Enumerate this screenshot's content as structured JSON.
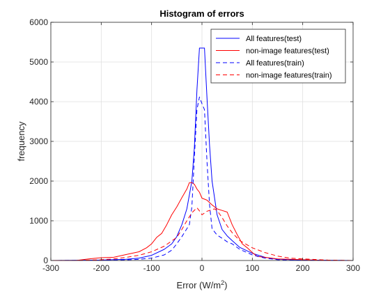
{
  "chart_data": {
    "type": "line",
    "title": "Histogram of errors",
    "xlabel": "Error (W/m",
    "xlabel_sup": "2",
    "xlabel_close": ")",
    "ylabel": "frequency",
    "xlim": [
      -300,
      300
    ],
    "ylim": [
      0,
      6000
    ],
    "xticks": [
      -300,
      -200,
      -100,
      0,
      100,
      200,
      300
    ],
    "yticks": [
      0,
      1000,
      2000,
      3000,
      4000,
      5000,
      6000
    ],
    "xtick_labels": [
      "-300",
      "-200",
      "-100",
      "0",
      "100",
      "200",
      "300"
    ],
    "ytick_labels": [
      "0",
      "1000",
      "2000",
      "3000",
      "4000",
      "5000",
      "6000"
    ],
    "grid": true,
    "legend_position": "top-right",
    "series": [
      {
        "name": "All features(test)",
        "color": "#0000ff",
        "dash": "solid",
        "x": [
          -300,
          -200,
          -150,
          -125,
          -100,
          -75,
          -60,
          -50,
          -40,
          -30,
          -20,
          -15,
          -10,
          -5,
          0,
          5,
          10,
          15,
          20,
          30,
          40,
          50,
          60,
          75,
          100,
          125,
          150,
          200,
          300
        ],
        "y": [
          0,
          10,
          30,
          60,
          130,
          280,
          420,
          600,
          900,
          1300,
          2000,
          2850,
          4300,
          5350,
          5350,
          5350,
          4100,
          2900,
          2000,
          1150,
          780,
          620,
          500,
          330,
          180,
          80,
          30,
          10,
          0
        ]
      },
      {
        "name": "non-image features(test)",
        "color": "#ff0000",
        "dash": "solid",
        "x": [
          -300,
          -250,
          -225,
          -200,
          -175,
          -150,
          -125,
          -110,
          -100,
          -90,
          -80,
          -70,
          -60,
          -50,
          -40,
          -30,
          -25,
          -20,
          -15,
          -10,
          -5,
          0,
          10,
          20,
          30,
          40,
          50,
          60,
          70,
          80,
          90,
          100,
          110,
          125,
          150,
          175,
          200,
          225,
          250,
          275,
          300
        ],
        "y": [
          0,
          0,
          40,
          70,
          80,
          150,
          220,
          320,
          420,
          580,
          680,
          900,
          1150,
          1350,
          1580,
          1800,
          1960,
          1960,
          1920,
          1800,
          1720,
          1570,
          1520,
          1400,
          1300,
          1260,
          1220,
          900,
          650,
          420,
          320,
          200,
          100,
          80,
          40,
          30,
          20,
          10,
          0,
          0,
          0
        ]
      },
      {
        "name": "All features(train)",
        "color": "#0000ff",
        "dash": "dashed",
        "x": [
          -300,
          -200,
          -150,
          -125,
          -100,
          -75,
          -60,
          -50,
          -40,
          -30,
          -25,
          -20,
          -15,
          -10,
          -5,
          0,
          5,
          10,
          15,
          20,
          30,
          40,
          50,
          60,
          75,
          100,
          125,
          150,
          200,
          300
        ],
        "y": [
          0,
          5,
          15,
          30,
          60,
          140,
          260,
          420,
          600,
          800,
          900,
          1350,
          2600,
          3800,
          4120,
          3950,
          3800,
          2500,
          1400,
          800,
          640,
          560,
          470,
          420,
          280,
          140,
          60,
          20,
          5,
          0
        ]
      },
      {
        "name": "non-image features(train)",
        "color": "#ff0000",
        "dash": "dashed",
        "x": [
          -300,
          -250,
          -225,
          -200,
          -175,
          -150,
          -125,
          -100,
          -75,
          -50,
          -40,
          -30,
          -20,
          -10,
          -5,
          0,
          10,
          20,
          25,
          30,
          40,
          50,
          60,
          75,
          100,
          125,
          150,
          175,
          200,
          250,
          300
        ],
        "y": [
          0,
          0,
          10,
          20,
          40,
          80,
          130,
          220,
          360,
          580,
          780,
          1000,
          1200,
          1330,
          1250,
          1150,
          1240,
          1280,
          1300,
          1260,
          1080,
          870,
          700,
          500,
          320,
          200,
          110,
          60,
          40,
          10,
          0
        ]
      }
    ]
  }
}
